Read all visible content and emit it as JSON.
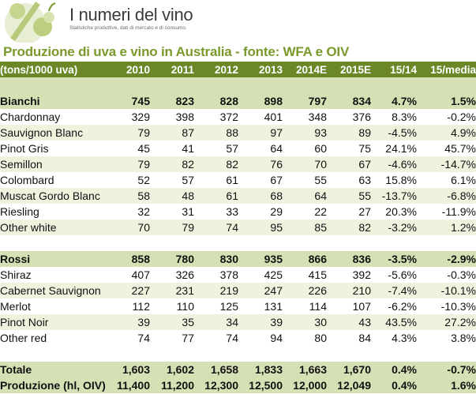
{
  "brand": {
    "name": "I numeri del vino",
    "tagline": "Statistiche produttive, dati di mercato e di consumo."
  },
  "title": "Produzione di uva e vino in Australia - fonte: WFA e OIV",
  "table": {
    "headers": [
      "(tons/1000 uva)",
      "2010",
      "2011",
      "2012",
      "2013",
      "2014E",
      "2015E",
      "15/14",
      "15/media"
    ],
    "bianchi": {
      "total": [
        "Bianchi",
        "745",
        "823",
        "828",
        "898",
        "797",
        "834",
        "4.7%",
        "1.5%"
      ],
      "rows": [
        [
          "Chardonnay",
          "329",
          "398",
          "372",
          "401",
          "348",
          "376",
          "8.3%",
          "-0.2%"
        ],
        [
          "Sauvignon Blanc",
          "79",
          "87",
          "88",
          "97",
          "93",
          "89",
          "-4.5%",
          "4.9%"
        ],
        [
          "Pinot Gris",
          "45",
          "41",
          "57",
          "64",
          "60",
          "75",
          "24.1%",
          "45.7%"
        ],
        [
          "Semillon",
          "79",
          "82",
          "82",
          "76",
          "70",
          "67",
          "-4.6%",
          "-14.7%"
        ],
        [
          "Colombard",
          "52",
          "57",
          "61",
          "67",
          "55",
          "63",
          "15.8%",
          "6.1%"
        ],
        [
          "Muscat Gordo Blanc",
          "58",
          "48",
          "61",
          "68",
          "64",
          "55",
          "-13.7%",
          "-6.8%"
        ],
        [
          "Riesling",
          "32",
          "31",
          "33",
          "29",
          "22",
          "27",
          "20.3%",
          "-11.9%"
        ],
        [
          "Other white",
          "70",
          "79",
          "74",
          "95",
          "85",
          "82",
          "-3.2%",
          "1.2%"
        ]
      ]
    },
    "rossi": {
      "total": [
        "Rossi",
        "858",
        "780",
        "830",
        "935",
        "866",
        "836",
        "-3.5%",
        "-2.9%"
      ],
      "rows": [
        [
          "Shiraz",
          "407",
          "326",
          "378",
          "425",
          "415",
          "392",
          "-5.6%",
          "-0.3%"
        ],
        [
          "Cabernet Sauvignon",
          "227",
          "231",
          "219",
          "247",
          "226",
          "210",
          "-7.4%",
          "-10.1%"
        ],
        [
          "Merlot",
          "112",
          "110",
          "125",
          "131",
          "114",
          "107",
          "-6.2%",
          "-10.3%"
        ],
        [
          "Pinot Noir",
          "39",
          "35",
          "34",
          "39",
          "30",
          "43",
          "43.5%",
          "27.2%"
        ],
        [
          "Other red",
          "74",
          "77",
          "74",
          "94",
          "80",
          "84",
          "4.3%",
          "3.8%"
        ]
      ]
    },
    "totale": [
      "Totale",
      "1,603",
      "1,602",
      "1,658",
      "1,833",
      "1,663",
      "1,670",
      "0.4%",
      "-0.7%"
    ],
    "produzione": [
      "Produzione (hl, OIV)",
      "11,400",
      "11,200",
      "12,300",
      "12,500",
      "12,000",
      "12,049",
      "0.4%",
      "1.6%"
    ]
  },
  "colors": {
    "header_green": "#6b8728",
    "title_green": "#7a9a2c",
    "band_green": "#d5e1b4",
    "stripe": "#eef3de"
  },
  "icons": [
    "percent-grape-logo-icon"
  ]
}
